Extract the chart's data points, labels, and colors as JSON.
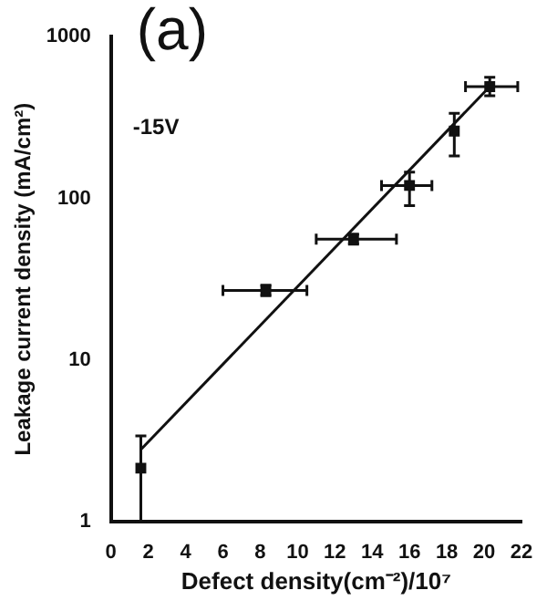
{
  "chart_data": {
    "type": "scatter",
    "title": "(a)",
    "xlabel": "Defect density(cm⁻²)/10⁷",
    "ylabel": "Leakage current density (mA/cm²)",
    "annotations": [
      "-15V"
    ],
    "log": "y",
    "grid": false,
    "legend": false,
    "xlim": [
      0,
      22
    ],
    "xticks": [
      0,
      2,
      4,
      6,
      8,
      10,
      12,
      14,
      16,
      18,
      20,
      22
    ],
    "ylim": [
      1,
      1000
    ],
    "yticks": [
      1,
      10,
      100,
      1000
    ],
    "series": [
      {
        "marker": "square",
        "color": "#111111",
        "x": [
          1.6,
          8.3,
          13,
          16,
          18.4,
          20.3
        ],
        "values": [
          2.15,
          27,
          56,
          120,
          260,
          490
        ],
        "errors": [
          [
            1,
            3.4
          ],
          [
            25,
            29
          ],
          [
            52,
            60
          ],
          [
            90,
            145
          ],
          [
            183,
            335
          ],
          [
            430,
            560
          ]
        ],
        "xerrors": [
          null,
          [
            6,
            10.5
          ],
          [
            11,
            15.3
          ],
          [
            14.5,
            17.2
          ],
          null,
          [
            19,
            21.8
          ]
        ]
      },
      {
        "type": "line",
        "marker": "none",
        "color": "#111111",
        "x": [
          1.6,
          20.3
        ],
        "values": [
          2.8,
          490
        ]
      }
    ]
  }
}
